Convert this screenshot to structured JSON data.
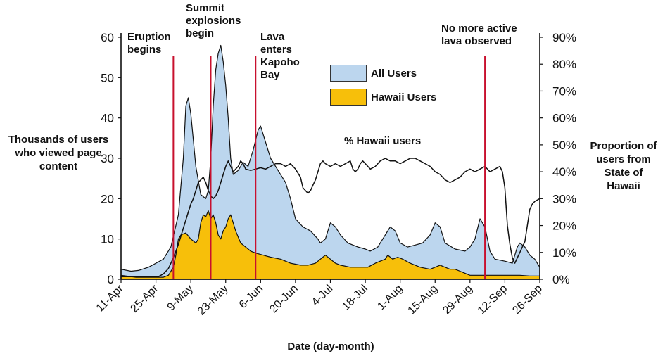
{
  "colors": {
    "all_users": "#bcd6ee",
    "hawaii_users": "#f7bf0a",
    "event_line": "#c8102e",
    "axis": "#111111"
  },
  "chart_data": {
    "type": "area",
    "xlabel": "Date (day-month)",
    "ylabel": "Thousands of users who viewed page content",
    "y2label": "Proportion of users from State of Hawaii",
    "ylim": [
      0,
      60
    ],
    "y2lim": [
      0,
      90
    ],
    "yticks": [
      "0",
      "10",
      "20",
      "30",
      "40",
      "50",
      "60"
    ],
    "y2ticks": [
      "0%",
      "10%",
      "20%",
      "30%",
      "40%",
      "50%",
      "60%",
      "70%",
      "80%",
      "90%"
    ],
    "x_range_days": [
      0,
      168
    ],
    "xticks": [
      {
        "day": 0,
        "label": "11-Apr"
      },
      {
        "day": 14,
        "label": "25-Apr"
      },
      {
        "day": 28,
        "label": "9-May"
      },
      {
        "day": 42,
        "label": "23-May"
      },
      {
        "day": 56,
        "label": "6-Jun"
      },
      {
        "day": 70,
        "label": "20-Jun"
      },
      {
        "day": 84,
        "label": "4-Jul"
      },
      {
        "day": 98,
        "label": "18-Jul"
      },
      {
        "day": 112,
        "label": "1-Aug"
      },
      {
        "day": 126,
        "label": "15-Aug"
      },
      {
        "day": 140,
        "label": "29-Aug"
      },
      {
        "day": 154,
        "label": "12-Sep"
      },
      {
        "day": 168,
        "label": "26-Sep"
      }
    ],
    "series": [
      {
        "name": "All Users",
        "axis": "left",
        "kind": "area",
        "color_key": "all_users",
        "points": [
          [
            0,
            2.5
          ],
          [
            4,
            2
          ],
          [
            7,
            2.2
          ],
          [
            11,
            3
          ],
          [
            14,
            4
          ],
          [
            17,
            5
          ],
          [
            20,
            8
          ],
          [
            23,
            16
          ],
          [
            25,
            30
          ],
          [
            26,
            43
          ],
          [
            27,
            45
          ],
          [
            28,
            41
          ],
          [
            30,
            28
          ],
          [
            32,
            21
          ],
          [
            34,
            20
          ],
          [
            35,
            22
          ],
          [
            36,
            30
          ],
          [
            37,
            43
          ],
          [
            38,
            52
          ],
          [
            39,
            56
          ],
          [
            40,
            58
          ],
          [
            41,
            54
          ],
          [
            42,
            48
          ],
          [
            43,
            40
          ],
          [
            44,
            30
          ],
          [
            45,
            26
          ],
          [
            47,
            27
          ],
          [
            49,
            29
          ],
          [
            51,
            28
          ],
          [
            53,
            32
          ],
          [
            55,
            37
          ],
          [
            56,
            38
          ],
          [
            58,
            34
          ],
          [
            60,
            30
          ],
          [
            63,
            27
          ],
          [
            66,
            24
          ],
          [
            68,
            20
          ],
          [
            70,
            15
          ],
          [
            73,
            13
          ],
          [
            76,
            12
          ],
          [
            79,
            10
          ],
          [
            80,
            9
          ],
          [
            82,
            10
          ],
          [
            84,
            14
          ],
          [
            86,
            13
          ],
          [
            88,
            11
          ],
          [
            91,
            9
          ],
          [
            95,
            8
          ],
          [
            98,
            7.5
          ],
          [
            100,
            7
          ],
          [
            103,
            8
          ],
          [
            106,
            11
          ],
          [
            108,
            13
          ],
          [
            110,
            12
          ],
          [
            112,
            9
          ],
          [
            115,
            8
          ],
          [
            118,
            8.5
          ],
          [
            121,
            9
          ],
          [
            124,
            11
          ],
          [
            126,
            14
          ],
          [
            128,
            13
          ],
          [
            130,
            9
          ],
          [
            134,
            7.5
          ],
          [
            138,
            7
          ],
          [
            140,
            8
          ],
          [
            142,
            10
          ],
          [
            144,
            15
          ],
          [
            146,
            13
          ],
          [
            148,
            7
          ],
          [
            150,
            5
          ],
          [
            154,
            4.5
          ],
          [
            157,
            4
          ],
          [
            159,
            8
          ],
          [
            160,
            9
          ],
          [
            162,
            8
          ],
          [
            164,
            6
          ],
          [
            166,
            5
          ],
          [
            168,
            3
          ]
        ]
      },
      {
        "name": "Hawaii Users",
        "axis": "left",
        "kind": "area",
        "color_key": "hawaii_users",
        "points": [
          [
            0,
            1
          ],
          [
            6,
            0.5
          ],
          [
            12,
            0.5
          ],
          [
            17,
            0.5
          ],
          [
            19,
            1
          ],
          [
            21,
            3
          ],
          [
            22,
            6
          ],
          [
            23,
            10
          ],
          [
            24,
            11
          ],
          [
            26,
            11.5
          ],
          [
            28,
            10
          ],
          [
            30,
            9
          ],
          [
            31,
            10
          ],
          [
            32,
            14
          ],
          [
            33,
            16
          ],
          [
            34,
            15.5
          ],
          [
            35,
            17
          ],
          [
            36,
            15
          ],
          [
            37,
            16
          ],
          [
            38,
            14
          ],
          [
            39,
            11
          ],
          [
            40,
            10
          ],
          [
            41,
            12
          ],
          [
            42,
            13
          ],
          [
            43,
            15
          ],
          [
            44,
            16
          ],
          [
            45,
            14
          ],
          [
            46,
            12
          ],
          [
            48,
            9
          ],
          [
            50,
            8
          ],
          [
            52,
            7
          ],
          [
            54,
            6.5
          ],
          [
            57,
            6
          ],
          [
            60,
            5.5
          ],
          [
            64,
            5
          ],
          [
            68,
            4
          ],
          [
            72,
            3.5
          ],
          [
            75,
            3.5
          ],
          [
            78,
            4
          ],
          [
            80,
            5
          ],
          [
            82,
            6
          ],
          [
            84,
            5
          ],
          [
            86,
            4
          ],
          [
            88,
            3.5
          ],
          [
            92,
            3
          ],
          [
            96,
            3
          ],
          [
            99,
            3
          ],
          [
            102,
            4
          ],
          [
            104,
            4.5
          ],
          [
            106,
            5
          ],
          [
            107,
            6
          ],
          [
            109,
            5
          ],
          [
            111,
            5.5
          ],
          [
            113,
            5
          ],
          [
            116,
            4
          ],
          [
            120,
            3
          ],
          [
            124,
            2.5
          ],
          [
            126,
            3
          ],
          [
            128,
            3.5
          ],
          [
            130,
            3
          ],
          [
            132,
            2.5
          ],
          [
            134,
            2.5
          ],
          [
            136,
            2
          ],
          [
            138,
            1.5
          ],
          [
            140,
            1
          ],
          [
            144,
            1
          ],
          [
            148,
            1
          ],
          [
            152,
            1
          ],
          [
            156,
            1
          ],
          [
            160,
            1
          ],
          [
            164,
            0.8
          ],
          [
            168,
            0.8
          ]
        ]
      },
      {
        "name": "% Hawaii users",
        "axis": "right",
        "kind": "line",
        "label": "% Hawaii users",
        "points": [
          [
            0,
            1
          ],
          [
            8,
            1
          ],
          [
            15,
            1
          ],
          [
            17,
            2
          ],
          [
            19,
            4
          ],
          [
            21,
            8
          ],
          [
            23,
            13
          ],
          [
            25,
            19
          ],
          [
            27,
            25
          ],
          [
            28,
            28
          ],
          [
            29,
            30
          ],
          [
            30,
            33
          ],
          [
            31,
            36
          ],
          [
            32,
            37
          ],
          [
            33,
            38
          ],
          [
            34,
            36
          ],
          [
            35,
            33
          ],
          [
            36,
            31
          ],
          [
            37,
            30
          ],
          [
            38,
            31
          ],
          [
            39,
            33
          ],
          [
            40,
            36
          ],
          [
            41,
            39
          ],
          [
            42,
            42
          ],
          [
            43,
            44
          ],
          [
            44,
            42
          ],
          [
            45,
            40
          ],
          [
            46,
            41
          ],
          [
            47,
            42
          ],
          [
            48,
            44
          ],
          [
            49,
            43
          ],
          [
            50,
            41
          ],
          [
            52,
            40.5
          ],
          [
            54,
            41
          ],
          [
            56,
            41.5
          ],
          [
            58,
            41
          ],
          [
            60,
            42
          ],
          [
            62,
            43
          ],
          [
            64,
            43
          ],
          [
            66,
            42
          ],
          [
            68,
            43
          ],
          [
            70,
            41
          ],
          [
            72,
            38
          ],
          [
            73,
            34
          ],
          [
            74,
            33
          ],
          [
            75,
            32
          ],
          [
            76,
            33
          ],
          [
            77,
            35
          ],
          [
            78,
            37
          ],
          [
            79,
            40
          ],
          [
            80,
            43
          ],
          [
            81,
            44
          ],
          [
            82,
            43
          ],
          [
            84,
            42
          ],
          [
            86,
            43
          ],
          [
            88,
            42
          ],
          [
            90,
            43
          ],
          [
            92,
            44
          ],
          [
            93,
            41
          ],
          [
            94,
            40
          ],
          [
            95,
            41
          ],
          [
            96,
            43
          ],
          [
            97,
            44
          ],
          [
            98,
            43
          ],
          [
            100,
            41
          ],
          [
            102,
            42
          ],
          [
            104,
            44
          ],
          [
            106,
            45
          ],
          [
            108,
            44
          ],
          [
            110,
            44
          ],
          [
            112,
            43
          ],
          [
            114,
            44
          ],
          [
            116,
            45
          ],
          [
            118,
            45
          ],
          [
            120,
            44
          ],
          [
            122,
            43
          ],
          [
            124,
            42
          ],
          [
            126,
            40
          ],
          [
            128,
            39
          ],
          [
            130,
            37
          ],
          [
            132,
            36
          ],
          [
            134,
            37
          ],
          [
            136,
            38
          ],
          [
            138,
            40
          ],
          [
            140,
            41
          ],
          [
            142,
            40
          ],
          [
            144,
            41
          ],
          [
            146,
            42
          ],
          [
            148,
            40
          ],
          [
            150,
            41
          ],
          [
            152,
            42
          ],
          [
            153,
            40
          ],
          [
            154,
            34
          ],
          [
            155,
            20
          ],
          [
            156,
            13
          ],
          [
            157,
            8
          ],
          [
            158,
            6
          ],
          [
            159,
            8
          ],
          [
            160,
            10
          ],
          [
            161,
            12
          ],
          [
            162,
            14
          ],
          [
            163,
            20
          ],
          [
            164,
            26
          ],
          [
            165,
            28
          ],
          [
            166,
            29
          ],
          [
            168,
            30
          ]
        ]
      }
    ],
    "events": [
      {
        "day": 21,
        "label": "Eruption\nbegins"
      },
      {
        "day": 36,
        "label": "Summit\nexplosions\nbegin"
      },
      {
        "day": 54,
        "label": "Lava\nenters\nKapoho\nBay"
      },
      {
        "day": 146,
        "label": "No more active\nlava observed"
      }
    ],
    "legend": [
      "All Users",
      "Hawaii Users"
    ]
  },
  "labels": {
    "left_axis_title": "Thousands of users who viewed page content",
    "right_axis_title": "Proportion of users from State of Hawaii",
    "x_axis_title": "Date (day-month)",
    "pct_line_label": "% Hawaii users",
    "legend_all": "All Users",
    "legend_hawaii": "Hawaii Users",
    "event_1": "Eruption\nbegins",
    "event_2": "Summit\nexplosions\nbegin",
    "event_3": "Lava\nenters\nKapoho\nBay",
    "event_4": "No more active\nlava observed"
  }
}
